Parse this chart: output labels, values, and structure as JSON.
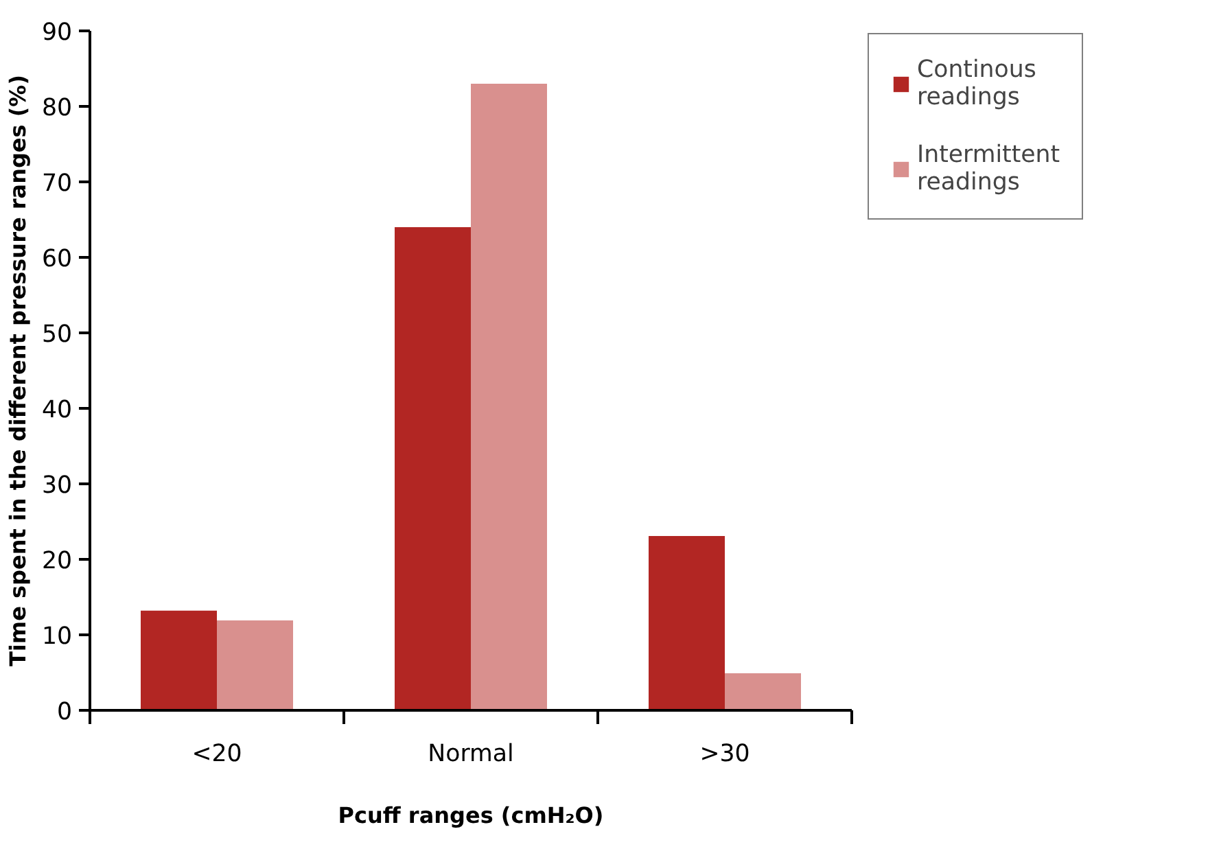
{
  "chart_data": {
    "type": "bar",
    "xlabel": "Pcuff ranges (cmH₂O)",
    "ylabel": "Time spent in the different pressure ranges (%)",
    "categories": [
      "<20",
      "Normal",
      ">30"
    ],
    "series": [
      {
        "name": "Continous readings",
        "color": "#b22623",
        "values": [
          13.2,
          64.0,
          23.1
        ]
      },
      {
        "name": "Intermittent readings",
        "color": "#d9908e",
        "values": [
          11.9,
          83.0,
          4.9
        ]
      }
    ],
    "ylim": [
      0,
      90
    ],
    "yticks": [
      0,
      10,
      20,
      30,
      40,
      50,
      60,
      70,
      80,
      90
    ],
    "grid": false,
    "legend": "top right"
  }
}
